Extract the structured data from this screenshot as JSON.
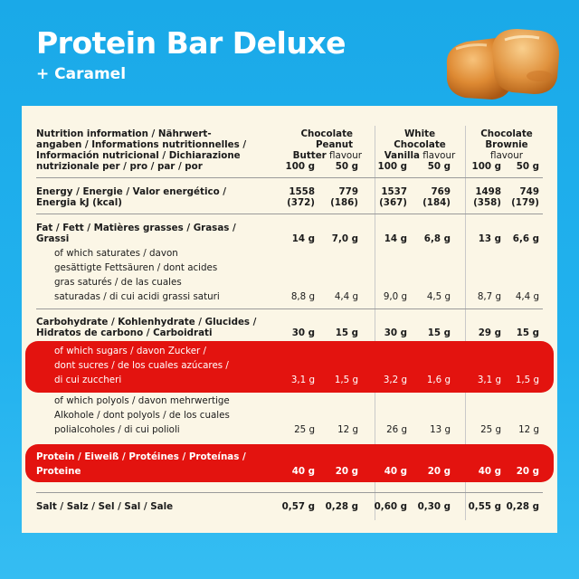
{
  "title": "Protein Bar Deluxe",
  "subtitle": "+ Caramel",
  "header": {
    "label_lines": [
      "Nutrition information / Nährwert-",
      "angaben / Informations nutritionnelles /",
      "Información nutricional / Dichiarazione",
      "nutrizionale per / pro / par / por"
    ],
    "products": [
      {
        "lines": [
          "Chocolate",
          "Peanut"
        ],
        "last_bold": "Butter",
        "last_regular": " flavour"
      },
      {
        "lines": [
          "White",
          "Chocolate"
        ],
        "last_bold": "Vanilla",
        "last_regular": " flavour"
      },
      {
        "lines": [
          "Chocolate",
          "Brownie"
        ],
        "last_bold": "",
        "last_regular": "flavour"
      }
    ],
    "portions": [
      "100 g",
      "50 g"
    ]
  },
  "energy": {
    "label_lines": [
      "Energy / Energie / Valor energético /",
      "Energia kJ (kcal)"
    ],
    "kj": [
      "1558",
      "779",
      "1537",
      "769",
      "1498",
      "749"
    ],
    "kcal": [
      "(372)",
      "(186)",
      "(367)",
      "(184)",
      "(358)",
      "(179)"
    ]
  },
  "fat": {
    "label_lines": [
      "Fat / Fett / Matières grasses / Grasas /",
      "Grassi"
    ],
    "values": [
      "14 g",
      "7,0 g",
      "14 g",
      "6,8 g",
      "13 g",
      "6,6 g"
    ]
  },
  "saturates": {
    "label_lines": [
      "of which saturates / davon",
      "gesättigte Fettsäuren / dont acides",
      "gras saturés / de las cuales",
      "saturadas / di cui acidi grassi saturi"
    ],
    "values": [
      "8,8 g",
      "4,4 g",
      "9,0 g",
      "4,5 g",
      "8,7 g",
      "4,4 g"
    ]
  },
  "carbs": {
    "label_lines": [
      "Carbohydrate / Kohlenhydrate / Glucides /",
      "Hidratos de carbono / Carboidrati"
    ],
    "values": [
      "30 g",
      "15 g",
      "30 g",
      "15 g",
      "29 g",
      "15 g"
    ]
  },
  "sugars": {
    "label_lines": [
      "of which sugars / davon Zucker /",
      "dont sucres / de los cuales azúcares /",
      "di cui zuccheri"
    ],
    "values": [
      "3,1 g",
      "1,5 g",
      "3,2 g",
      "1,6 g",
      "3,1 g",
      "1,5 g"
    ]
  },
  "polyols": {
    "label_lines": [
      "of which polyols / davon mehrwertige",
      "Alkohole / dont polyols / de los cuales",
      "polialcoholes / di cui polioli"
    ],
    "values": [
      "25 g",
      "12 g",
      "26 g",
      "13 g",
      "25 g",
      "12 g"
    ]
  },
  "protein": {
    "label_lines": [
      "Protein / Eiweiß / Protéines / Proteínas /",
      "Proteine"
    ],
    "values": [
      "40 g",
      "20 g",
      "40 g",
      "20 g",
      "40 g",
      "20 g"
    ]
  },
  "salt": {
    "label": "Salt / Salz / Sel / Sal / Sale",
    "values": [
      "0,57 g",
      "0,28 g",
      "0,60 g",
      "0,30 g",
      "0,55 g",
      "0,28 g"
    ]
  },
  "colors": {
    "background": "#1aa9e8",
    "panel": "#fbf6e6",
    "highlight": "#e3130f",
    "caramel": "#d9822b"
  },
  "icons": {
    "decoration": "caramel-pieces-icon"
  }
}
